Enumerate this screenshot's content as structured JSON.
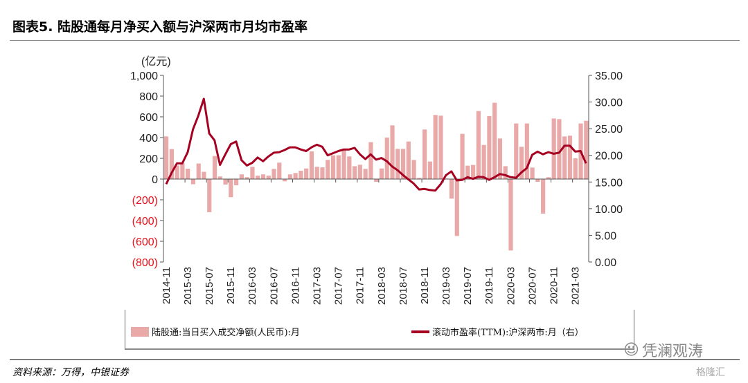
{
  "title": "图表5. 陆股通每月净买入额与沪深两市月均市盈率",
  "source": "资料来源：万得，中银证券",
  "watermarks": [
    "凭澜观涛",
    "格隆汇"
  ],
  "chart_data": {
    "type": "bar+line",
    "left_axis": {
      "unit_label": "(亿元)",
      "ylim": [
        -800,
        1000
      ],
      "ticks": [
        "1,000",
        "800",
        "600",
        "400",
        "200",
        "0",
        "(200)",
        "(400)",
        "(600)",
        "(800)"
      ],
      "tick_values": [
        1000,
        800,
        600,
        400,
        200,
        0,
        -200,
        -400,
        -600,
        -800
      ],
      "negative_color": "#e8101a"
    },
    "right_axis": {
      "ylim": [
        0,
        35
      ],
      "ticks": [
        "35.00",
        "30.00",
        "25.00",
        "20.00",
        "15.00",
        "10.00",
        "5.00",
        "0.00"
      ],
      "tick_values": [
        35,
        30,
        25,
        20,
        15,
        10,
        5,
        0
      ]
    },
    "x_start": "2014-11",
    "x_tick_labels": [
      "2014-11",
      "2015-03",
      "2015-07",
      "2015-11",
      "2016-03",
      "2016-07",
      "2016-11",
      "2017-03",
      "2017-07",
      "2017-11",
      "2018-03",
      "2018-07",
      "2018-11",
      "2019-03",
      "2019-07",
      "2019-11",
      "2020-03",
      "2020-07",
      "2020-11",
      "2021-03"
    ],
    "series": [
      {
        "name": "陆股通:当日买入成交净额(人民币):月",
        "type": "bar",
        "axis": "left",
        "color": "#e8a9a8",
        "values": [
          411,
          289,
          130,
          150,
          100,
          -50,
          150,
          70,
          -320,
          222,
          25,
          -53,
          -175,
          -60,
          45,
          18,
          118,
          33,
          45,
          33,
          98,
          158,
          -22,
          45,
          58,
          80,
          102,
          267,
          118,
          113,
          185,
          229,
          229,
          284,
          218,
          124,
          138,
          98,
          356,
          -27,
          102,
          400,
          518,
          291,
          291,
          362,
          184,
          11,
          478,
          169,
          618,
          611,
          5,
          -189,
          -549,
          436,
          129,
          136,
          656,
          329,
          607,
          736,
          391,
          124,
          -689,
          536,
          311,
          536,
          111,
          -27,
          -333,
          18,
          584,
          578,
          411,
          418,
          200,
          536,
          562
        ]
      },
      {
        "name": "滚动市盈率(TTM):沪深两市:月（右）",
        "type": "line",
        "axis": "right",
        "color": "#a50021",
        "values": [
          14.6,
          16.7,
          18.5,
          18.5,
          20.6,
          24.9,
          27.5,
          30.6,
          24.1,
          22.8,
          18.2,
          20.2,
          22.1,
          22.6,
          19.1,
          18.1,
          18.6,
          19.6,
          18.9,
          19.8,
          20.5,
          20.6,
          21.0,
          21.5,
          21.5,
          21.1,
          20.8,
          21.5,
          22.0,
          21.6,
          20.0,
          20.4,
          20.8,
          21.1,
          21.1,
          21.4,
          20.2,
          19.3,
          20.2,
          19.2,
          19.5,
          18.9,
          17.9,
          17.2,
          16.3,
          15.5,
          14.7,
          13.6,
          13.7,
          13.5,
          13.4,
          14.6,
          16.3,
          17.0,
          15.3,
          15.4,
          15.9,
          15.6,
          16.0,
          15.9,
          15.4,
          15.9,
          16.5,
          16.3,
          15.9,
          15.8,
          16.8,
          17.6,
          20.1,
          20.7,
          20.2,
          20.6,
          20.3,
          20.5,
          21.8,
          21.8,
          20.7,
          20.8,
          18.5
        ]
      }
    ],
    "grid": false,
    "legend_placement": "bottom"
  }
}
